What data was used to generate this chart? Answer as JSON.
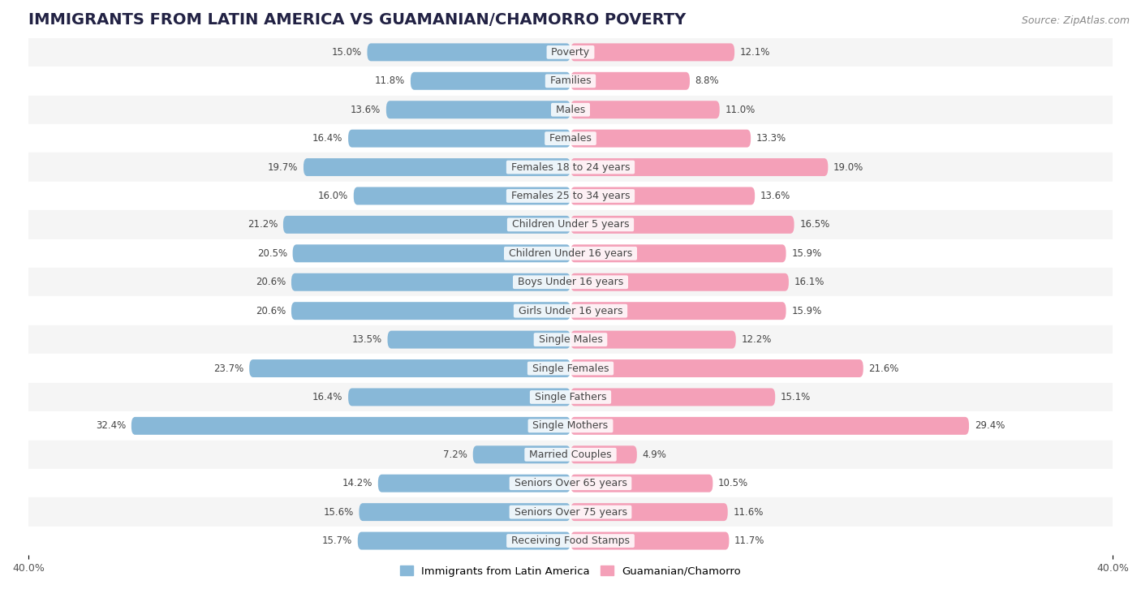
{
  "title": "IMMIGRANTS FROM LATIN AMERICA VS GUAMANIAN/CHAMORRO POVERTY",
  "source": "Source: ZipAtlas.com",
  "categories": [
    "Poverty",
    "Families",
    "Males",
    "Females",
    "Females 18 to 24 years",
    "Females 25 to 34 years",
    "Children Under 5 years",
    "Children Under 16 years",
    "Boys Under 16 years",
    "Girls Under 16 years",
    "Single Males",
    "Single Females",
    "Single Fathers",
    "Single Mothers",
    "Married Couples",
    "Seniors Over 65 years",
    "Seniors Over 75 years",
    "Receiving Food Stamps"
  ],
  "left_values": [
    15.0,
    11.8,
    13.6,
    16.4,
    19.7,
    16.0,
    21.2,
    20.5,
    20.6,
    20.6,
    13.5,
    23.7,
    16.4,
    32.4,
    7.2,
    14.2,
    15.6,
    15.7
  ],
  "right_values": [
    12.1,
    8.8,
    11.0,
    13.3,
    19.0,
    13.6,
    16.5,
    15.9,
    16.1,
    15.9,
    12.2,
    21.6,
    15.1,
    29.4,
    4.9,
    10.5,
    11.6,
    11.7
  ],
  "left_color": "#88b8d8",
  "right_color": "#f4a0b8",
  "left_label": "Immigrants from Latin America",
  "right_label": "Guamanian/Chamorro",
  "xlim": 40.0,
  "bar_height": 0.62,
  "background_color": "#ffffff",
  "row_colors": [
    "#f5f5f5",
    "#ffffff"
  ],
  "title_fontsize": 14,
  "source_fontsize": 9,
  "label_fontsize": 9,
  "value_fontsize": 8.5,
  "legend_fontsize": 9.5,
  "axis_label_fontsize": 9
}
